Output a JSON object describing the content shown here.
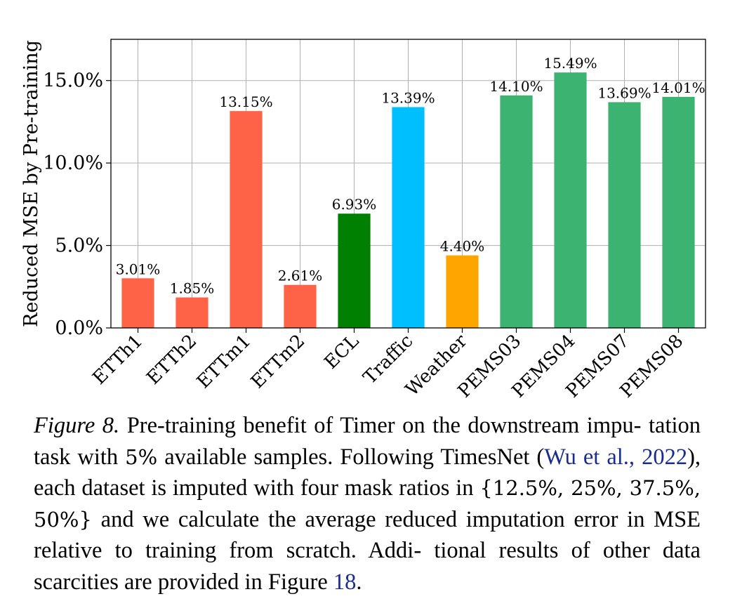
{
  "chart_data": {
    "type": "bar",
    "categories": [
      "ETTh1",
      "ETTh2",
      "ETTm1",
      "ETTm2",
      "ECL",
      "Traffic",
      "Weather",
      "PEMS03",
      "PEMS04",
      "PEMS07",
      "PEMS08"
    ],
    "values": [
      3.01,
      1.85,
      13.15,
      2.61,
      6.93,
      13.39,
      4.4,
      14.1,
      15.49,
      13.69,
      14.01
    ],
    "value_labels": [
      "3.01%",
      "1.85%",
      "13.15%",
      "2.61%",
      "6.93%",
      "13.39%",
      "4.40%",
      "14.10%",
      "15.49%",
      "13.69%",
      "14.01%"
    ],
    "colors": [
      "#ff6347",
      "#ff6347",
      "#ff6347",
      "#ff6347",
      "#008000",
      "#00bfff",
      "#ffa500",
      "#3cb371",
      "#3cb371",
      "#3cb371",
      "#3cb371"
    ],
    "ylabel": "Reduced MSE by Pre-training",
    "xlabel": "",
    "ylim": [
      0,
      17.5
    ],
    "yticks": [
      0,
      5,
      10,
      15
    ],
    "ytick_labels": [
      "0.0%",
      "5.0%",
      "10.0%",
      "15.0%"
    ],
    "grid": true
  },
  "caption": {
    "label": "Figure 8.",
    "text_1": "Pre-training benefit of Timer on the downstream impu- tation task with",
    "math_1": "5%",
    "text_2": "available samples. Following TimesNet (",
    "cite": "Wu et al.,",
    "cite_year": "2022",
    "text_3": "), each dataset is imputed with four mask ratios in",
    "math_2": "{12.5%, 25%, 37.5%, 50%}",
    "text_4": "and we calculate the average reduced imputation error in MSE relative to training from scratch. Addi- tional results of other data scarcities are provided in Figure",
    "fig_ref": "18",
    "text_5": "."
  }
}
